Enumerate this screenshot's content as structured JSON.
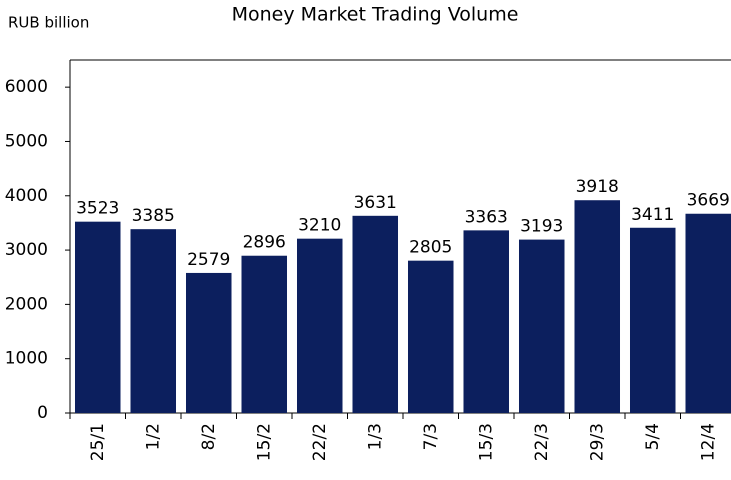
{
  "chart_data": {
    "type": "bar",
    "title": "Money Market Trading Volume",
    "y_label": "RUB billion",
    "categories": [
      "25/1",
      "1/2",
      "8/2",
      "15/2",
      "22/2",
      "1/3",
      "7/3",
      "15/3",
      "22/3",
      "29/3",
      "5/4",
      "12/4"
    ],
    "values": [
      3523,
      3385,
      2579,
      2896,
      3210,
      3631,
      2805,
      3363,
      3193,
      3918,
      3411,
      3669
    ],
    "color": "#0c1f5e",
    "ylim": [
      0,
      6500
    ],
    "yticks": [
      0,
      1000,
      2000,
      3000,
      4000,
      5000,
      6000
    ],
    "grid": false
  }
}
